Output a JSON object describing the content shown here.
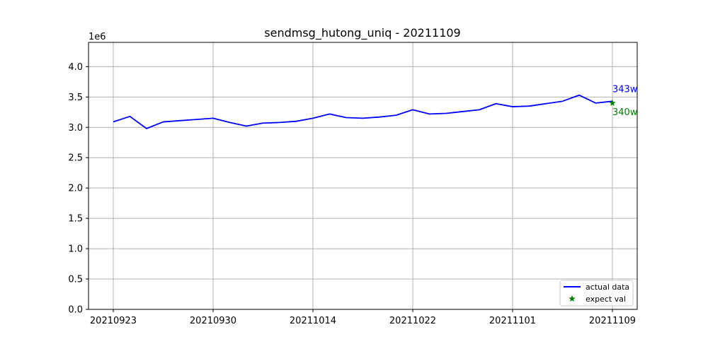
{
  "chart_data": {
    "type": "line",
    "title": "sendmsg_hutong_uniq - 20211109",
    "xlabel": "",
    "ylabel": "",
    "y_multiplier_label": "1e6",
    "ylim": [
      0,
      4400000
    ],
    "yticks": [
      0,
      500000,
      1000000,
      1500000,
      2000000,
      2500000,
      3000000,
      3500000,
      4000000
    ],
    "ytick_labels": [
      "0.0",
      "0.5",
      "1.0",
      "1.5",
      "2.0",
      "2.5",
      "3.0",
      "3.5",
      "4.0"
    ],
    "xtick_labels": [
      "20210923",
      "20210930",
      "20211014",
      "20211022",
      "20211101",
      "20211109"
    ],
    "xtick_indices": [
      0,
      6,
      12,
      18,
      24,
      30
    ],
    "grid": true,
    "legend_position": "lower-right",
    "series": [
      {
        "name": "actual data",
        "color": "#0000ff",
        "values": [
          3090000,
          3180000,
          2980000,
          3090000,
          3110000,
          3130000,
          3150000,
          3080000,
          3020000,
          3070000,
          3080000,
          3100000,
          3150000,
          3220000,
          3160000,
          3150000,
          3170000,
          3200000,
          3290000,
          3220000,
          3230000,
          3260000,
          3290000,
          3390000,
          3340000,
          3350000,
          3390000,
          3430000,
          3530000,
          3400000,
          3430000
        ]
      },
      {
        "name": "expect val",
        "color": "#008000",
        "marker": "star",
        "index": 30,
        "value": 3400000
      }
    ],
    "annotations": [
      {
        "text": "343w",
        "color": "#0000ff"
      },
      {
        "text": "340w",
        "color": "#008000"
      }
    ]
  }
}
